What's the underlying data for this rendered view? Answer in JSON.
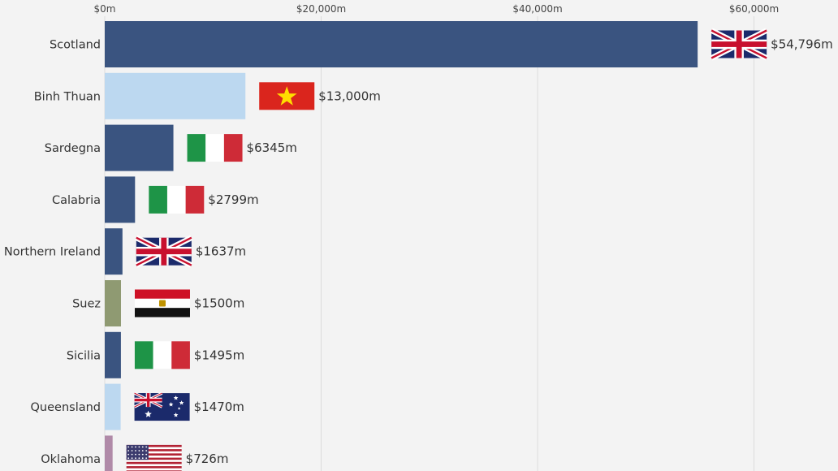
{
  "chart_data": {
    "type": "bar",
    "orientation": "horizontal",
    "xlim": [
      0,
      75000
    ],
    "xticks": [
      {
        "value": 0,
        "label": "$0m"
      },
      {
        "value": 20000,
        "label": "$20,000m"
      },
      {
        "value": 40000,
        "label": "$40,000m"
      },
      {
        "value": 60000,
        "label": "$60,000m"
      }
    ],
    "grid": true,
    "categories": [
      "Scotland",
      "Binh Thuan",
      "Sardegna",
      "Calabria",
      "Northern Ireland",
      "Suez",
      "Sicilia",
      "Queensland",
      "Oklahoma"
    ],
    "values": [
      54796,
      13000,
      6345,
      2799,
      1637,
      1500,
      1495,
      1470,
      726
    ],
    "value_labels": [
      "$54,796m",
      "$13,000m",
      "$6345m",
      "$2799m",
      "$1637m",
      "$1500m",
      "$1495m",
      "$1470m",
      "$726m"
    ],
    "flags": [
      "uk",
      "vietnam",
      "italy",
      "italy",
      "uk",
      "egypt",
      "italy",
      "australia",
      "usa"
    ],
    "bar_colors": [
      "#3a5480",
      "#bcd8f0",
      "#3a5480",
      "#3a5480",
      "#3a5480",
      "#8f9a72",
      "#3a5480",
      "#bcd8f0",
      "#b08aa8"
    ]
  }
}
